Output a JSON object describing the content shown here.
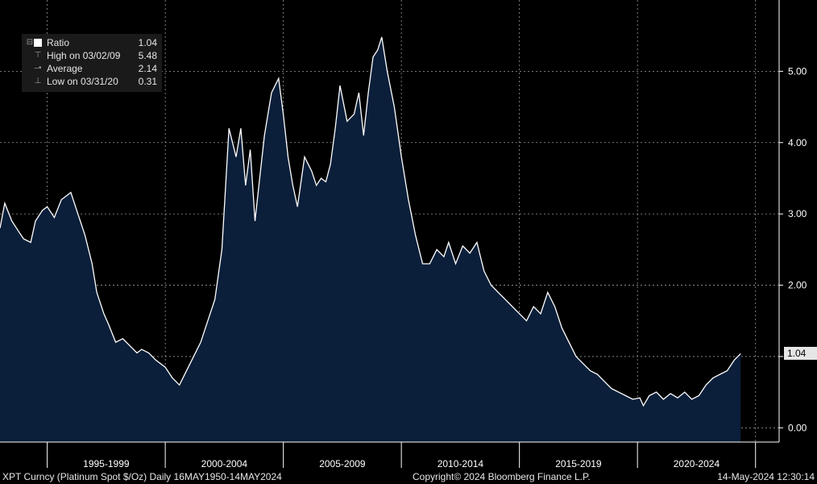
{
  "legend": {
    "items": [
      {
        "label": "Ratio",
        "value": "1.04",
        "icon": "square-swatch-icon"
      },
      {
        "label": "High on 03/02/09",
        "value": "5.48",
        "icon": "high-marker-icon"
      },
      {
        "label": "Average",
        "value": "2.14",
        "icon": "average-marker-icon"
      },
      {
        "label": "Low on 03/31/20",
        "value": "0.31",
        "icon": "low-marker-icon"
      }
    ]
  },
  "footer": {
    "security": "XPT Curncy (Platinum Spot  $/Oz)  Daily 16MAY1950-14MAY2024",
    "copyright": "Copyright© 2024 Bloomberg Finance L.P.",
    "timestamp": "14-May-2024 12:30:14"
  },
  "colors": {
    "background": "#000000",
    "area_fill": "#0b1f3a",
    "line": "#ffffff",
    "grid": "#9a9a9a"
  },
  "chart_data": {
    "type": "area",
    "last_value_label": "1.04",
    "ylim": [
      -0.2,
      6.0
    ],
    "xlim": [
      1993.0,
      2026.0
    ],
    "y_ticks": [
      "0.00",
      "1.00",
      "2.00",
      "3.00",
      "4.00",
      "5.00"
    ],
    "y_tick_values": [
      0,
      1,
      2,
      3,
      4,
      5
    ],
    "x_period_labels": [
      "1995-1999",
      "2000-2004",
      "2005-2009",
      "2010-2014",
      "2015-2019",
      "2020-2024"
    ],
    "x_period_centers": [
      1997.5,
      2002.5,
      2007.5,
      2012.5,
      2017.5,
      2022.5
    ],
    "x_divider_years": [
      1995,
      2000,
      2005,
      2010,
      2015,
      2020,
      2025
    ],
    "series": [
      {
        "x": [
          1993.0,
          1993.2,
          1993.5,
          1993.8,
          1994.0,
          1994.3,
          1994.5,
          1994.8,
          1995.0,
          1995.3,
          1995.6,
          1996.0,
          1996.3,
          1996.6,
          1996.9,
          1997.1,
          1997.4,
          1997.6,
          1997.9,
          1998.2,
          1998.5,
          1998.8,
          1999.0,
          1999.3,
          1999.6,
          2000.0,
          2000.3,
          2000.6,
          2000.9,
          2001.2,
          2001.5,
          2001.8,
          2002.1,
          2002.4,
          2002.7,
          2003.0,
          2003.2,
          2003.4,
          2003.6,
          2003.8,
          2004.0,
          2004.2,
          2004.5,
          2004.8,
          2005.0,
          2005.2,
          2005.4,
          2005.6,
          2005.9,
          2006.2,
          2006.4,
          2006.6,
          2006.8,
          2007.0,
          2007.2,
          2007.4,
          2007.7,
          2008.0,
          2008.2,
          2008.4,
          2008.6,
          2008.8,
          2009.0,
          2009.17,
          2009.4,
          2009.7,
          2010.0,
          2010.3,
          2010.6,
          2010.9,
          2011.2,
          2011.5,
          2011.8,
          2012.0,
          2012.3,
          2012.6,
          2012.9,
          2013.2,
          2013.5,
          2013.8,
          2014.1,
          2014.4,
          2014.7,
          2015.0,
          2015.3,
          2015.6,
          2015.9,
          2016.2,
          2016.5,
          2016.8,
          2017.1,
          2017.4,
          2017.7,
          2018.0,
          2018.3,
          2018.6,
          2018.9,
          2019.2,
          2019.5,
          2019.8,
          2020.1,
          2020.25,
          2020.5,
          2020.8,
          2021.1,
          2021.4,
          2021.7,
          2022.0,
          2022.3,
          2022.6,
          2022.9,
          2023.2,
          2023.5,
          2023.8,
          2024.1,
          2024.37
        ],
        "values": [
          2.8,
          3.15,
          2.9,
          2.75,
          2.65,
          2.6,
          2.9,
          3.05,
          3.1,
          2.95,
          3.2,
          3.3,
          3.0,
          2.7,
          2.3,
          1.9,
          1.6,
          1.45,
          1.2,
          1.25,
          1.15,
          1.05,
          1.1,
          1.05,
          0.95,
          0.85,
          0.7,
          0.6,
          0.8,
          1.0,
          1.2,
          1.5,
          1.8,
          2.5,
          4.2,
          3.8,
          4.2,
          3.4,
          3.9,
          2.9,
          3.5,
          4.1,
          4.7,
          4.9,
          4.4,
          3.8,
          3.4,
          3.1,
          3.8,
          3.6,
          3.4,
          3.5,
          3.45,
          3.7,
          4.2,
          4.8,
          4.3,
          4.4,
          4.7,
          4.1,
          4.7,
          5.2,
          5.3,
          5.48,
          5.0,
          4.5,
          3.8,
          3.2,
          2.7,
          2.3,
          2.3,
          2.5,
          2.4,
          2.6,
          2.3,
          2.55,
          2.45,
          2.6,
          2.2,
          2.0,
          1.9,
          1.8,
          1.7,
          1.6,
          1.5,
          1.7,
          1.6,
          1.9,
          1.7,
          1.4,
          1.2,
          1.0,
          0.9,
          0.8,
          0.75,
          0.65,
          0.55,
          0.5,
          0.45,
          0.4,
          0.42,
          0.31,
          0.45,
          0.5,
          0.4,
          0.48,
          0.42,
          0.5,
          0.4,
          0.45,
          0.6,
          0.7,
          0.75,
          0.8,
          0.95,
          1.04
        ]
      }
    ]
  }
}
